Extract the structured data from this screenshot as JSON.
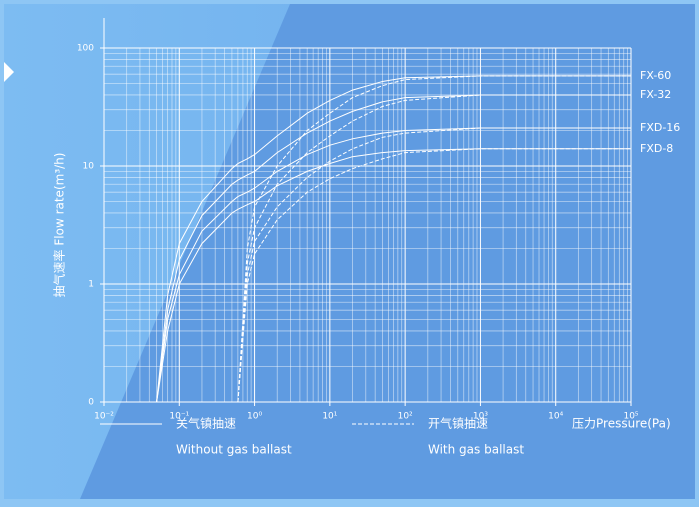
{
  "chart_data": {
    "type": "line",
    "log_x": true,
    "log_y": true,
    "grid": true,
    "line_color": "#ffffff",
    "y_label": "抽气速率 Flow rate(m³/h)",
    "x_label": "压力Pressure(Pa)",
    "xlim": [
      0.01,
      100000
    ],
    "xticks": [
      {
        "value": 0.01,
        "label": "10⁻²"
      },
      {
        "value": 0.1,
        "label": "10⁻¹"
      },
      {
        "value": 1,
        "label": "10⁰"
      },
      {
        "value": 10,
        "label": "10¹"
      },
      {
        "value": 100,
        "label": "10²"
      },
      {
        "value": 1000,
        "label": "10³"
      },
      {
        "value": 10000,
        "label": "10⁴"
      },
      {
        "value": 100000,
        "label": "10⁵"
      }
    ],
    "ylim": [
      0.1,
      100
    ],
    "yticks": [
      {
        "value": 0.1,
        "label": "0"
      },
      1,
      10,
      100
    ],
    "legend": [
      {
        "label": "关气镇抽速",
        "sublabel": "Without gas ballast",
        "dashed": false
      },
      {
        "label": "开气镇抽速",
        "sublabel": "With gas ballast",
        "dashed": true
      }
    ],
    "x": [
      0.05,
      0.07,
      0.1,
      0.2,
      0.5,
      0.6,
      0.8,
      1,
      2,
      5,
      10,
      20,
      50,
      100,
      1000,
      100000
    ],
    "series": [
      {
        "name": "FX-60",
        "values": [
          0.1,
          0.8,
          2.2,
          5,
          9.5,
          10.5,
          11.5,
          12.5,
          18,
          28,
          36,
          44,
          52,
          56,
          58,
          58
        ],
        "ballast_values": [
          null,
          null,
          null,
          null,
          null,
          0.1,
          2,
          4.5,
          10,
          20,
          28,
          38,
          48,
          54,
          58,
          58
        ]
      },
      {
        "name": "FX-32",
        "values": [
          0.1,
          0.6,
          1.6,
          3.8,
          7,
          7.6,
          8.4,
          9,
          13,
          19,
          24,
          29,
          35,
          38,
          40,
          40
        ],
        "ballast_values": [
          null,
          null,
          null,
          null,
          null,
          0.1,
          1.5,
          3,
          7,
          13,
          18,
          24,
          32,
          36,
          40,
          40
        ]
      },
      {
        "name": "FXD-16",
        "values": [
          0.1,
          0.5,
          1.2,
          2.8,
          5,
          5.5,
          6,
          6.5,
          9,
          12.5,
          15,
          17,
          19,
          20,
          21,
          21
        ],
        "ballast_values": [
          null,
          null,
          null,
          null,
          null,
          0.1,
          1.2,
          2.3,
          4.5,
          8,
          11,
          14,
          17.5,
          19,
          21,
          21
        ]
      },
      {
        "name": "FXD-8",
        "values": [
          0.1,
          0.4,
          1,
          2.2,
          4,
          4.3,
          4.7,
          5,
          6.8,
          9,
          10.5,
          12,
          13,
          13.5,
          14,
          14
        ],
        "ballast_values": [
          null,
          null,
          null,
          null,
          null,
          0.1,
          1,
          1.8,
          3.5,
          6,
          7.8,
          9.5,
          11.5,
          13,
          14,
          14
        ]
      }
    ]
  }
}
